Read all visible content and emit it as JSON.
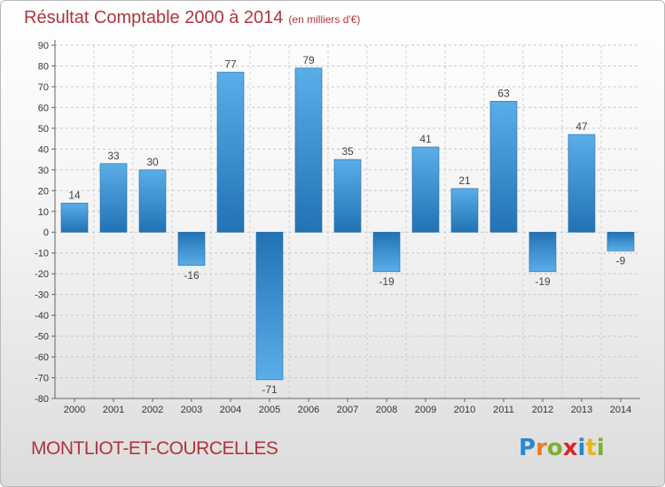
{
  "header": {
    "title": "Résultat Comptable 2000 à 2014",
    "subtitle": "(en milliers d'€)"
  },
  "footer": {
    "commune": "MONTLIOT-ET-COURCELLES",
    "logo_letters": [
      "P",
      "r",
      "o",
      "x",
      "i",
      "t",
      "i"
    ],
    "logo_colors": [
      "#2a87d0",
      "#e87e1c",
      "#7bb12d",
      "#d8262c",
      "#2a87d0",
      "#e8b51c",
      "#7bb12d"
    ]
  },
  "chart_data": {
    "type": "bar",
    "title": "Résultat Comptable 2000 à 2014",
    "subtitle": "(en milliers d'€)",
    "categories": [
      "2000",
      "2001",
      "2002",
      "2003",
      "2004",
      "2005",
      "2006",
      "2007",
      "2008",
      "2009",
      "2010",
      "2011",
      "2012",
      "2013",
      "2014"
    ],
    "values": [
      14,
      33,
      30,
      -16,
      77,
      -71,
      79,
      35,
      -19,
      41,
      21,
      63,
      -19,
      47,
      -9
    ],
    "value_labels": [
      "14",
      "33",
      "30",
      "-16",
      "77",
      "-71",
      "79",
      "35",
      "-19",
      "41",
      "21",
      "63",
      "-19",
      "47",
      "-9"
    ],
    "yticks": [
      "90",
      "80",
      "70",
      "60",
      "50",
      "40",
      "30",
      "20",
      "10",
      "0",
      "-10",
      "-20",
      "-30",
      "-40",
      "-50",
      "-60",
      "-70",
      "-80"
    ],
    "ylim": [
      -80,
      90
    ],
    "ystep": 10,
    "grid": true,
    "bar_color": "#3a92d6"
  }
}
